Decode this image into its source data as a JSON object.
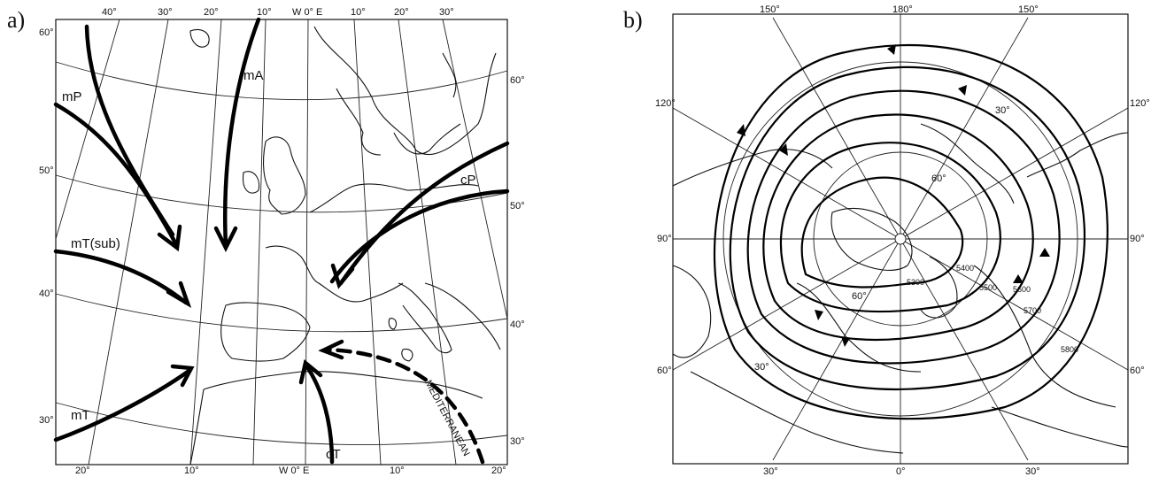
{
  "panel_a": {
    "label": "a)",
    "top_lon_labels": [
      "40°",
      "30°",
      "20°",
      "10°",
      "W 0° E",
      "10°",
      "20°",
      "30°"
    ],
    "bottom_lon_labels": [
      "20°",
      "10°",
      "W 0° E",
      "10°",
      "20°"
    ],
    "left_lat_labels": [
      "60°",
      "50°",
      "40°",
      "30°"
    ],
    "right_lat_labels": [
      "60°",
      "50°",
      "40°",
      "30°"
    ],
    "air_masses": [
      "mP",
      "mA",
      "cP",
      "mT(sub)",
      "mT",
      "cT",
      "MEDITERRANEAN"
    ]
  },
  "panel_b": {
    "label": "b)",
    "top_labels": [
      "150°",
      "180°",
      "150°"
    ],
    "side_labels_left": [
      "120°",
      "90°",
      "60°"
    ],
    "side_labels_right": [
      "120°",
      "90°",
      "60°"
    ],
    "bottom_labels": [
      "30°",
      "0°",
      "30°"
    ],
    "lat_labels": [
      "30°",
      "60°",
      "60°",
      "30°"
    ],
    "contour_labels": [
      "5300",
      "5400",
      "5500",
      "5600",
      "5700",
      "5800"
    ]
  }
}
